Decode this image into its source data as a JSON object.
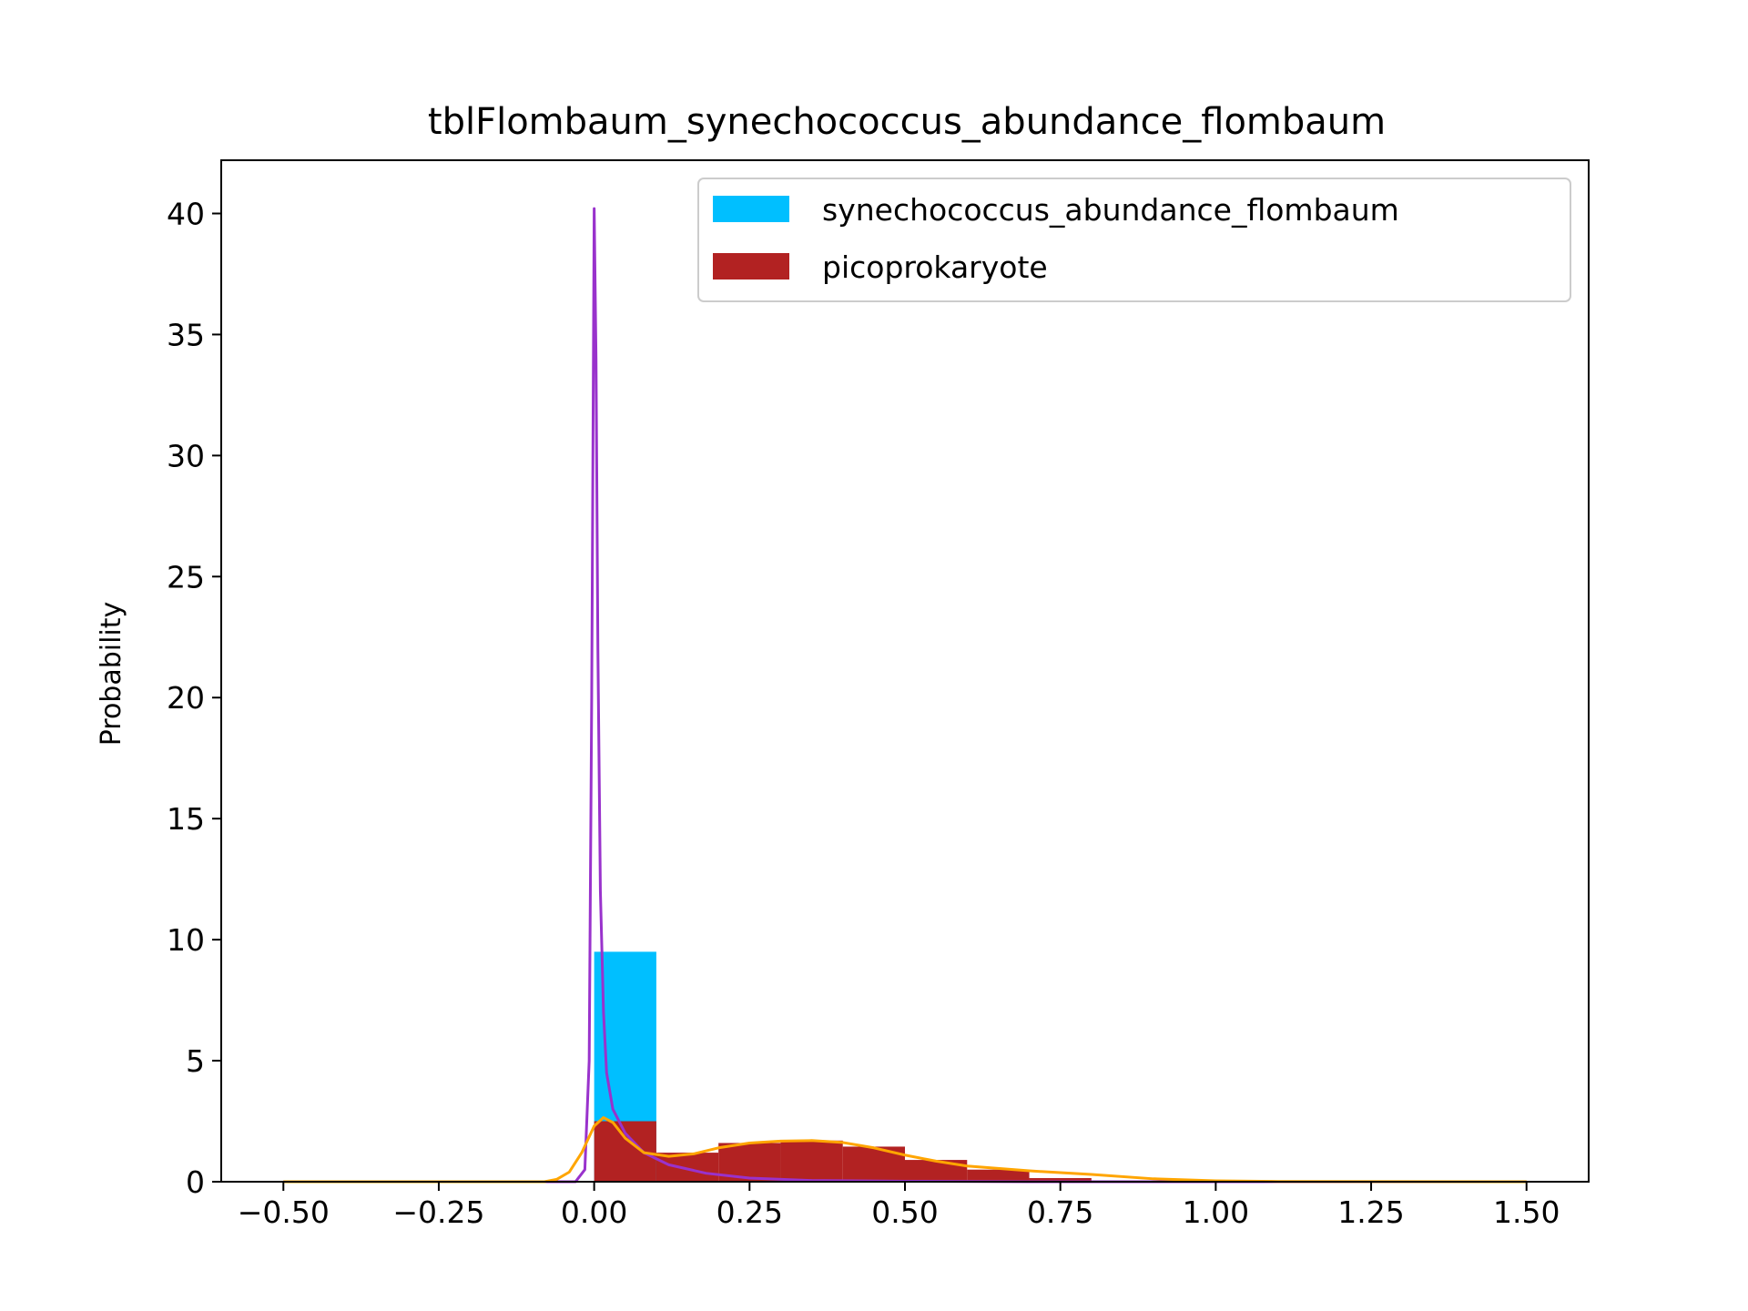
{
  "chart_data": {
    "type": "histogram",
    "title": "tblFlombaum_synechococcus_abundance_flombaum",
    "xlabel": "",
    "ylabel": "Probability",
    "xlim": [
      -0.6,
      1.6
    ],
    "ylim": [
      0,
      42.2
    ],
    "xticks": [
      -0.5,
      -0.25,
      0.0,
      0.25,
      0.5,
      0.75,
      1.0,
      1.25,
      1.5
    ],
    "xtick_labels": [
      "−0.50",
      "−0.25",
      "0.00",
      "0.25",
      "0.50",
      "0.75",
      "1.00",
      "1.25",
      "1.50"
    ],
    "yticks": [
      0,
      5,
      10,
      15,
      20,
      25,
      30,
      35,
      40
    ],
    "ytick_labels": [
      "0",
      "5",
      "10",
      "15",
      "20",
      "25",
      "30",
      "35",
      "40"
    ],
    "legend_position": "top-right",
    "series": [
      {
        "name": "synechococcus_abundance_flombaum",
        "color": "#00bfff",
        "bins": [
          0.0,
          0.1
        ],
        "values": [
          9.5
        ]
      },
      {
        "name": "picoprokaryote",
        "color": "#b22222",
        "bins": [
          0.0,
          0.1,
          0.2,
          0.3,
          0.4,
          0.5,
          0.6,
          0.7,
          0.8
        ],
        "values": [
          2.5,
          1.2,
          1.6,
          1.7,
          1.45,
          0.9,
          0.5,
          0.15
        ]
      }
    ],
    "density_curves": [
      {
        "color": "#9932cc",
        "x": [
          -0.5,
          -0.03,
          -0.015,
          -0.008,
          -0.004,
          0.0,
          0.003,
          0.006,
          0.01,
          0.015,
          0.02,
          0.03,
          0.05,
          0.08,
          0.12,
          0.18,
          0.25,
          0.35,
          0.5,
          0.7,
          1.0,
          1.5
        ],
        "y": [
          0,
          0,
          0.5,
          5,
          20,
          40.2,
          34,
          22,
          12,
          7,
          4.5,
          3,
          2,
          1.2,
          0.7,
          0.35,
          0.15,
          0.05,
          0.02,
          0,
          0,
          0
        ]
      },
      {
        "color": "#ffa500",
        "x": [
          -0.5,
          -0.08,
          -0.06,
          -0.04,
          -0.02,
          0.0,
          0.015,
          0.03,
          0.05,
          0.08,
          0.12,
          0.16,
          0.2,
          0.25,
          0.3,
          0.35,
          0.4,
          0.45,
          0.5,
          0.55,
          0.6,
          0.7,
          0.8,
          0.9,
          1.0,
          1.1,
          1.5
        ],
        "y": [
          0,
          0,
          0.1,
          0.4,
          1.2,
          2.3,
          2.65,
          2.45,
          1.8,
          1.2,
          1.05,
          1.15,
          1.4,
          1.6,
          1.68,
          1.7,
          1.62,
          1.4,
          1.1,
          0.85,
          0.65,
          0.45,
          0.3,
          0.12,
          0.04,
          0.01,
          0
        ]
      }
    ]
  }
}
